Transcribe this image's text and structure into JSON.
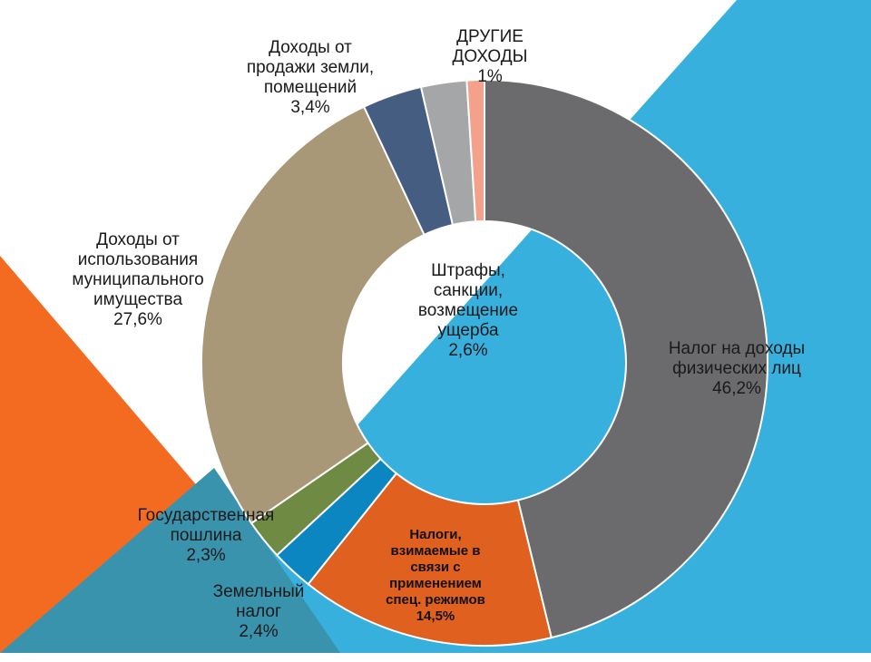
{
  "colors": {
    "background": "#ffffff",
    "blue_shape": "#38b0de",
    "orange_shape": "#f36b21",
    "teal_overlay": "#3a93ad"
  },
  "chart_data": {
    "type": "pie",
    "variant": "donut",
    "title": "",
    "grid": false,
    "legend": "none",
    "slices": [
      {
        "name": "Налог на доходы физических лиц",
        "label": "Налог на доходы\nфизических лиц",
        "value": 46.2,
        "value_label": "46,2%",
        "color": "#6b6b6e"
      },
      {
        "name": "Налоги, взимаемые в связи с применением спец. режимов",
        "label": "Налоги,\nвзимаемые в\nсвязи с\nприменением\nспец. режимов",
        "value": 14.5,
        "value_label": "14,5%",
        "color": "#e0601f"
      },
      {
        "name": "Земельный налог",
        "label": "Земельный\nналог",
        "value": 2.4,
        "value_label": "2,4%",
        "color": "#0c86c0"
      },
      {
        "name": "Государственная пошлина",
        "label": "Государственная\nпошлина",
        "value": 2.3,
        "value_label": "2,3%",
        "color": "#6f8a42"
      },
      {
        "name": "Доходы от использования муниципального имущества",
        "label": "Доходы от\nиспользования\nмуниципального\nимущества",
        "value": 27.6,
        "value_label": "27,6%",
        "color": "#a89878"
      },
      {
        "name": "Доходы от продажи земли, помещений",
        "label": "Доходы от\nпродажи земли,\nпомещений",
        "value": 3.4,
        "value_label": "3,4%",
        "color": "#455d80"
      },
      {
        "name": "Штрафы, санкции, возмещение ущерба",
        "label": "Штрафы,\nсанкции,\nвозмещение\nущерба",
        "value": 2.6,
        "value_label": "2,6%",
        "color": "#a5a6a8"
      },
      {
        "name": "ДРУГИЕ ДОХОДЫ",
        "label": "ДРУГИЕ\nДОХОДЫ",
        "value": 1.0,
        "value_label": "1%",
        "color": "#f4a08a"
      }
    ]
  }
}
